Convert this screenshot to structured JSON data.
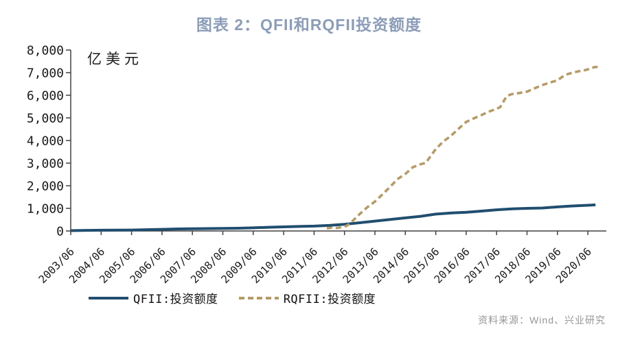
{
  "title": "图表 2：QFII和RQFII投资额度",
  "source": "资料来源：Wind、兴业研究",
  "colors": {
    "title": "#8C9DBA",
    "qfii_line": "#1F4E6F",
    "rqfii_line": "#B79B66",
    "axis": "#404040",
    "tick_text": "#1a1a1a",
    "source_text": "#969696"
  },
  "chart_data": {
    "type": "line",
    "title": "图表 2：QFII和RQFII投资额度",
    "ylabel": "亿美元",
    "xlabel": "",
    "ylim": [
      0,
      8000
    ],
    "ytick_step": 1000,
    "grid": false,
    "legend_position": "bottom",
    "ytick_labels": [
      "0",
      "1,000",
      "2,000",
      "3,000",
      "4,000",
      "5,000",
      "6,000",
      "7,000",
      "8,000"
    ],
    "xtick_labels": [
      "2003/06",
      "2004/06",
      "2005/06",
      "2006/06",
      "2007/06",
      "2008/06",
      "2009/06",
      "2010/06",
      "2011/06",
      "2012/06",
      "2013/06",
      "2014/06",
      "2015/06",
      "2016/06",
      "2017/06",
      "2018/06",
      "2019/06",
      "2020/06"
    ],
    "xtick_years": [
      2003.5,
      2004.5,
      2005.5,
      2006.5,
      2007.5,
      2008.5,
      2009.5,
      2010.5,
      2011.5,
      2012.5,
      2013.5,
      2014.5,
      2015.5,
      2016.5,
      2017.5,
      2018.5,
      2019.5,
      2020.5
    ],
    "series": [
      {
        "name": "QFII:投资额度",
        "style": "solid",
        "color": "#1F4E6F",
        "points": [
          [
            2003.5,
            15
          ],
          [
            2004.0,
            28
          ],
          [
            2004.5,
            33
          ],
          [
            2005.0,
            37
          ],
          [
            2005.5,
            42
          ],
          [
            2006.0,
            58
          ],
          [
            2006.5,
            72
          ],
          [
            2007.0,
            90
          ],
          [
            2007.5,
            100
          ],
          [
            2008.0,
            106
          ],
          [
            2008.5,
            112
          ],
          [
            2009.0,
            122
          ],
          [
            2009.5,
            140
          ],
          [
            2010.0,
            164
          ],
          [
            2010.5,
            182
          ],
          [
            2011.0,
            200
          ],
          [
            2011.5,
            214
          ],
          [
            2012.0,
            245
          ],
          [
            2012.5,
            295
          ],
          [
            2013.0,
            365
          ],
          [
            2013.5,
            435
          ],
          [
            2014.0,
            505
          ],
          [
            2014.5,
            580
          ],
          [
            2015.0,
            650
          ],
          [
            2015.5,
            745
          ],
          [
            2016.0,
            795
          ],
          [
            2016.5,
            825
          ],
          [
            2017.0,
            880
          ],
          [
            2017.5,
            935
          ],
          [
            2018.0,
            975
          ],
          [
            2018.5,
            1000
          ],
          [
            2019.0,
            1015
          ],
          [
            2019.5,
            1065
          ],
          [
            2020.0,
            1105
          ],
          [
            2020.5,
            1135
          ],
          [
            2020.75,
            1155
          ]
        ]
      },
      {
        "name": "RQFII:投资额度",
        "style": "dashed",
        "color": "#B79B66",
        "points": [
          [
            2011.92,
            110
          ],
          [
            2012.08,
            150
          ],
          [
            2012.25,
            130
          ],
          [
            2012.42,
            170
          ],
          [
            2012.58,
            230
          ],
          [
            2012.75,
            420
          ],
          [
            2013.0,
            750
          ],
          [
            2013.25,
            1050
          ],
          [
            2013.5,
            1300
          ],
          [
            2013.75,
            1620
          ],
          [
            2014.0,
            1950
          ],
          [
            2014.25,
            2300
          ],
          [
            2014.5,
            2520
          ],
          [
            2014.75,
            2820
          ],
          [
            2015.0,
            2950
          ],
          [
            2015.17,
            3010
          ],
          [
            2015.5,
            3620
          ],
          [
            2015.75,
            3960
          ],
          [
            2016.0,
            4210
          ],
          [
            2016.25,
            4520
          ],
          [
            2016.5,
            4820
          ],
          [
            2016.75,
            4980
          ],
          [
            2017.0,
            5120
          ],
          [
            2017.25,
            5280
          ],
          [
            2017.5,
            5400
          ],
          [
            2017.62,
            5480
          ],
          [
            2017.83,
            5960
          ],
          [
            2018.0,
            6050
          ],
          [
            2018.25,
            6100
          ],
          [
            2018.5,
            6160
          ],
          [
            2018.75,
            6310
          ],
          [
            2019.0,
            6450
          ],
          [
            2019.25,
            6560
          ],
          [
            2019.5,
            6660
          ],
          [
            2019.75,
            6900
          ],
          [
            2020.0,
            7000
          ],
          [
            2020.2,
            7060
          ],
          [
            2020.4,
            7110
          ],
          [
            2020.55,
            7160
          ],
          [
            2020.7,
            7240
          ],
          [
            2020.83,
            7255
          ]
        ]
      }
    ]
  }
}
